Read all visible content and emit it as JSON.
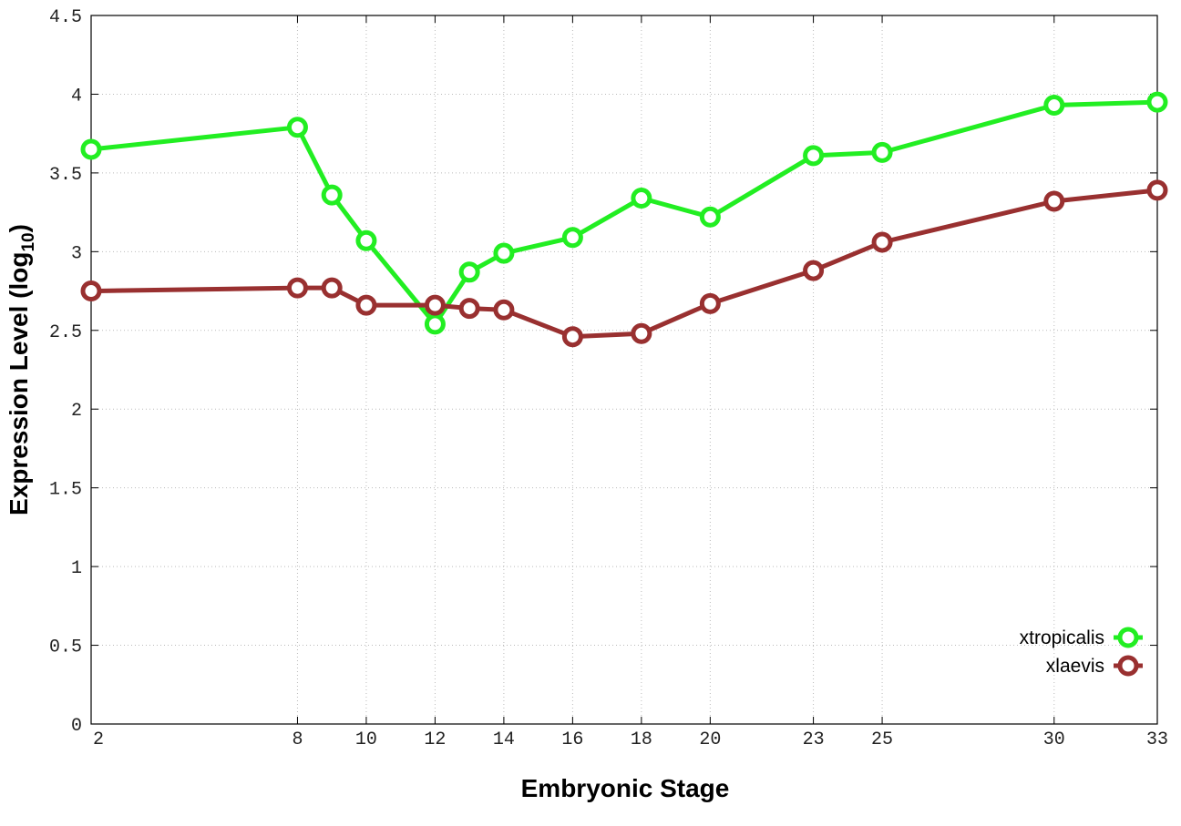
{
  "chart_data": {
    "type": "line",
    "title": "",
    "xlabel": "Embryonic Stage",
    "ylabel_main": "Expression Level (log",
    "ylabel_sub": "10",
    "ylabel_close": ")",
    "x": [
      2,
      8,
      9,
      10,
      12,
      13,
      14,
      16,
      18,
      20,
      23,
      25,
      30,
      33
    ],
    "xticks": [
      "2",
      "8",
      "10",
      "12",
      "14",
      "16",
      "18",
      "20",
      "23",
      "25",
      "30",
      "33"
    ],
    "xlim": [
      2,
      33
    ],
    "yticks": [
      "0",
      "0.5",
      "1",
      "1.5",
      "2",
      "2.5",
      "3",
      "3.5",
      "4",
      "4.5"
    ],
    "ylim": [
      0,
      4.5
    ],
    "grid": true,
    "legend_position": "bottom-right",
    "series": [
      {
        "name": "xtropicalis",
        "color": "#22ee22",
        "values": [
          3.65,
          3.79,
          3.36,
          3.07,
          2.54,
          2.87,
          2.99,
          3.09,
          3.34,
          3.22,
          3.61,
          3.63,
          3.93,
          3.95
        ]
      },
      {
        "name": "xlaevis",
        "color": "#993030",
        "values": [
          2.75,
          2.77,
          2.77,
          2.66,
          2.66,
          2.64,
          2.63,
          2.46,
          2.48,
          2.67,
          2.88,
          3.06,
          3.32,
          3.39
        ]
      }
    ]
  }
}
